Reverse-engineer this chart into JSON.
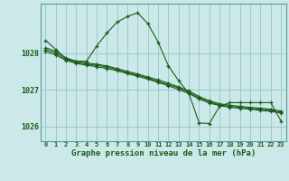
{
  "title": "Graphe pression niveau de la mer (hPa)",
  "bg_color": "#cce8e8",
  "grid_color": "#99cccc",
  "line_color": "#1a5c1a",
  "hours": [
    0,
    1,
    2,
    3,
    4,
    5,
    6,
    7,
    8,
    9,
    10,
    11,
    12,
    13,
    14,
    15,
    16,
    17,
    18,
    19,
    20,
    21,
    22,
    23
  ],
  "series1": [
    1028.35,
    1028.1,
    1027.85,
    1027.78,
    1027.78,
    1028.2,
    1028.55,
    1028.85,
    1029.0,
    1029.1,
    1028.8,
    1028.3,
    1027.65,
    1027.25,
    1026.9,
    1026.1,
    1026.08,
    1026.55,
    1026.65,
    1026.65,
    1026.65,
    1026.65,
    1026.65,
    1026.15
  ],
  "series2": [
    1028.15,
    1028.05,
    1027.87,
    1027.78,
    1027.73,
    1027.7,
    1027.65,
    1027.58,
    1027.5,
    1027.43,
    1027.35,
    1027.27,
    1027.18,
    1027.08,
    1026.97,
    1026.82,
    1026.7,
    1026.62,
    1026.58,
    1026.55,
    1026.52,
    1026.5,
    1026.47,
    1026.42
  ],
  "series3": [
    1028.1,
    1028.0,
    1027.83,
    1027.75,
    1027.7,
    1027.67,
    1027.62,
    1027.55,
    1027.47,
    1027.4,
    1027.32,
    1027.23,
    1027.14,
    1027.05,
    1026.93,
    1026.78,
    1026.67,
    1026.59,
    1026.55,
    1026.52,
    1026.5,
    1026.47,
    1026.44,
    1026.4
  ],
  "series4": [
    1028.05,
    1027.95,
    1027.8,
    1027.72,
    1027.67,
    1027.63,
    1027.58,
    1027.52,
    1027.44,
    1027.37,
    1027.29,
    1027.2,
    1027.11,
    1027.01,
    1026.9,
    1026.75,
    1026.64,
    1026.57,
    1026.52,
    1026.5,
    1026.47,
    1026.44,
    1026.41,
    1026.37
  ],
  "ylim": [
    1025.6,
    1029.35
  ],
  "yticks": [
    1026,
    1027,
    1028
  ],
  "xtick_fontsize": 5,
  "title_fontsize": 6.5
}
